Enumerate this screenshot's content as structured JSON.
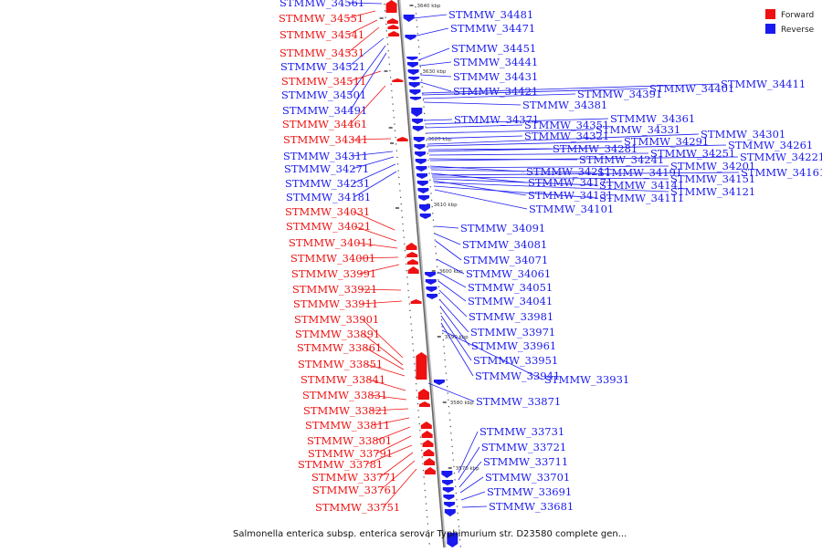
{
  "colors": {
    "forward": "#ee1111",
    "reverse": "#1a1aee",
    "axis": "#777777"
  },
  "legend": {
    "forward": "Forward",
    "reverse": "Reverse"
  },
  "caption": "Salmonella enterica subsp. enterica serovar Typhimurium str. D23580 complete gen...",
  "ticks": [
    "3640 kbp",
    "3630 kbp",
    "3620 kbp",
    "3610 kbp",
    "3600 kbp",
    "3590 kbp",
    "3580 kbp",
    "3570 kbp"
  ],
  "forward_labels": [
    "STMMW_34551",
    "STMMW_34541",
    "STMMW_34531",
    "STMMW_34511",
    "STMMW_34461",
    "STMMW_34341",
    "STMMW_34031",
    "STMMW_34021",
    "STMMW_34011",
    "STMMW_34001",
    "STMMW_33991",
    "STMMW_33921",
    "STMMW_33911",
    "STMMW_33901",
    "STMMW_33891",
    "STMMW_33861",
    "STMMW_33851",
    "STMMW_33841",
    "STMMW_33831",
    "STMMW_33821",
    "STMMW_33811",
    "STMMW_33801",
    "STMMW_33791",
    "STMMW_33781",
    "STMMW_33771",
    "STMMW_33761",
    "STMMW_33751"
  ],
  "reverse_left_labels": [
    "STMMW_34561",
    "STMMW_34521",
    "STMMW_34501",
    "STMMW_34491",
    "STMMW_34311",
    "STMMW_34271",
    "STMMW_34231",
    "STMMW_34181"
  ],
  "reverse_right_labels": [
    "STMMW_34481",
    "STMMW_34471",
    "STMMW_34451",
    "STMMW_34441",
    "STMMW_34431",
    "STMMW_34421",
    "STMMW_34411",
    "STMMW_34401",
    "STMMW_34391",
    "STMMW_34381",
    "STMMW_34371",
    "STMMW_34361",
    "STMMW_34351",
    "STMMW_34331",
    "STMMW_34321",
    "STMMW_34301",
    "STMMW_34291",
    "STMMW_34281",
    "STMMW_34261",
    "STMMW_34251",
    "STMMW_34241",
    "STMMW_34221",
    "STMMW_34211",
    "STMMW_34201",
    "STMMW_34191",
    "STMMW_34171",
    "STMMW_34161",
    "STMMW_34151",
    "STMMW_34141",
    "STMMW_34131",
    "STMMW_34121",
    "STMMW_34111",
    "STMMW_34101",
    "STMMW_34091",
    "STMMW_34081",
    "STMMW_34071",
    "STMMW_34061",
    "STMMW_34051",
    "STMMW_34041",
    "STMMW_33981",
    "STMMW_33971",
    "STMMW_33961",
    "STMMW_33951",
    "STMMW_33941",
    "STMMW_33931",
    "STMMW_33871",
    "STMMW_33731",
    "STMMW_33721",
    "STMMW_33711",
    "STMMW_33701",
    "STMMW_33691",
    "STMMW_33681"
  ]
}
